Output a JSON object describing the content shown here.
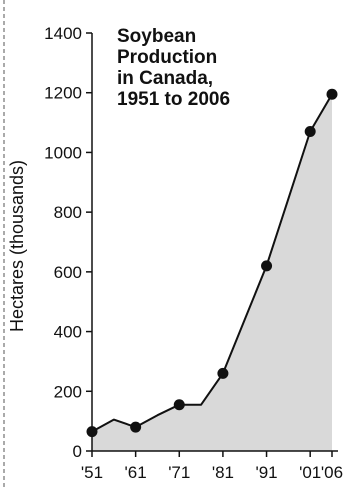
{
  "chart_data": {
    "type": "area",
    "title_lines": [
      "Soybean",
      "Production",
      "in Canada,",
      "1951 to 2006"
    ],
    "xlabel": "",
    "ylabel": "Hectares (thousands)",
    "ylim": [
      0,
      1400
    ],
    "xlim": [
      1951,
      2006
    ],
    "y_ticks": [
      0,
      200,
      400,
      600,
      800,
      1000,
      1200,
      1400
    ],
    "x_ticks": [
      {
        "value": 1951,
        "label": "'51"
      },
      {
        "value": 1961,
        "label": "'61"
      },
      {
        "value": 1971,
        "label": "'71"
      },
      {
        "value": 1981,
        "label": "'81"
      },
      {
        "value": 1991,
        "label": "'91"
      },
      {
        "value": 2001,
        "label": "'01"
      },
      {
        "value": 2006,
        "label": "'06"
      }
    ],
    "series": [
      {
        "x": [
          1951,
          1956,
          1961,
          1966,
          1971,
          1976,
          1981,
          1986,
          1991,
          1996,
          2001,
          2006
        ],
        "y": [
          65,
          105,
          80,
          120,
          155,
          155,
          260,
          440,
          620,
          845,
          1070,
          1195
        ],
        "marker_years": [
          1951,
          1961,
          1971,
          1981,
          1991,
          2001,
          2006
        ]
      }
    ],
    "grid": false,
    "colors": {
      "fill": "#d9d9d9",
      "line": "#111111",
      "marker": "#111111"
    }
  }
}
